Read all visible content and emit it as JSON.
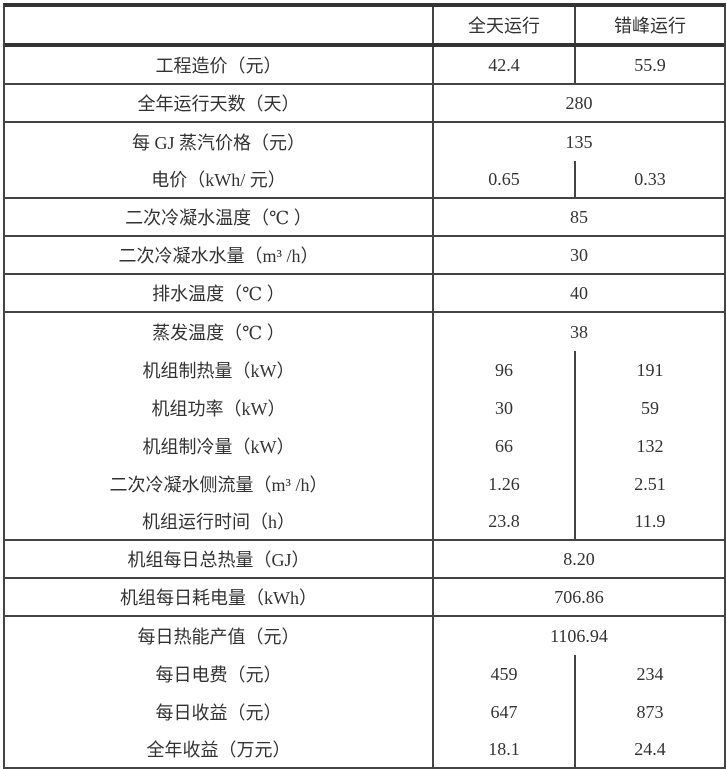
{
  "header": {
    "label": "",
    "col1": "全天运行",
    "col2": "错峰运行"
  },
  "groups": [
    [
      {
        "label": "工程造价（元）",
        "values": [
          "42.4",
          "55.9"
        ],
        "full_divider": true
      }
    ],
    [
      {
        "label": "全年运行天数（天）",
        "value": "280"
      }
    ],
    [
      {
        "label": "每 GJ 蒸汽价格（元）",
        "value": "135"
      },
      {
        "label": "电价（kWh/ 元）",
        "values": [
          "0.65",
          "0.33"
        ]
      }
    ],
    [
      {
        "label": "二次冷凝水温度（℃ ）",
        "value": "85"
      }
    ],
    [
      {
        "label": "二次冷凝水水量（m³ /h）",
        "value": "30"
      }
    ],
    [
      {
        "label": "排水温度（℃ ）",
        "value": "40"
      }
    ],
    [
      {
        "label": "蒸发温度（℃ ）",
        "value": "38"
      },
      {
        "label": "机组制热量（kW）",
        "values": [
          "96",
          "191"
        ]
      },
      {
        "label": "机组功率（kW）",
        "values": [
          "30",
          "59"
        ]
      },
      {
        "label": "机组制冷量（kW）",
        "values": [
          "66",
          "132"
        ]
      },
      {
        "label": "二次冷凝水侧流量（m³ /h）",
        "values": [
          "1.26",
          "2.51"
        ]
      },
      {
        "label": "机组运行时间（h）",
        "values": [
          "23.8",
          "11.9"
        ]
      }
    ],
    [
      {
        "label": "机组每日总热量（GJ）",
        "value": "8.20"
      }
    ],
    [
      {
        "label": "机组每日耗电量（kWh）",
        "value": "706.86"
      }
    ],
    [
      {
        "label": "每日热能产值（元）",
        "value": "1106.94"
      },
      {
        "label": "每日电费（元）",
        "values": [
          "459",
          "234"
        ]
      },
      {
        "label": "每日收益（元）",
        "values": [
          "647",
          "873"
        ]
      },
      {
        "label": "全年收益（万元）",
        "values": [
          "18.1",
          "24.4"
        ]
      }
    ]
  ]
}
